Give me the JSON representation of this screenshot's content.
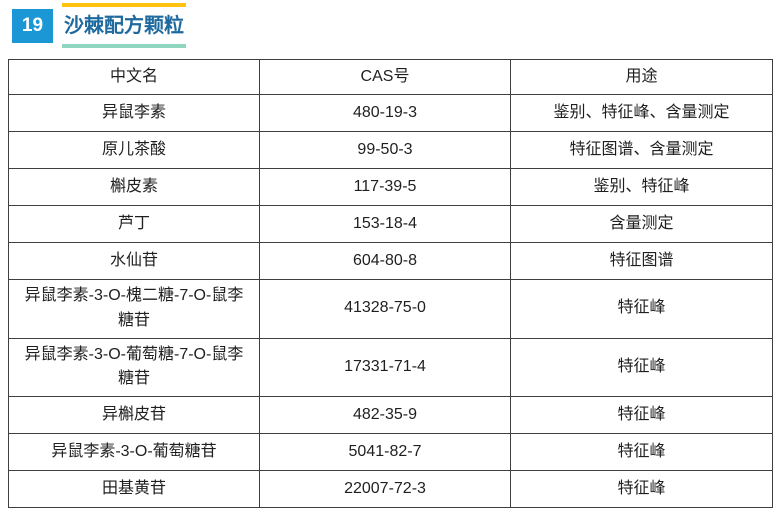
{
  "header": {
    "badge_number": "19",
    "title": "沙棘配方颗粒"
  },
  "colors": {
    "badge_bg": "#1B97D6",
    "title_text": "#1E6A9F",
    "bar_top": "#FFC20E",
    "bar_bottom": "#8FD5C0",
    "table_border": "#3F3F3F",
    "table_text": "#1F1F1F"
  },
  "table": {
    "columns": [
      "中文名",
      "CAS号",
      "用途"
    ],
    "rows": [
      {
        "name": "异鼠李素",
        "cas": "480-19-3",
        "usage": "鉴别、特征峰、含量测定"
      },
      {
        "name": "原儿茶酸",
        "cas": "99-50-3",
        "usage": "特征图谱、含量测定"
      },
      {
        "name": "槲皮素",
        "cas": "117-39-5",
        "usage": "鉴别、特征峰"
      },
      {
        "name": "芦丁",
        "cas": "153-18-4",
        "usage": "含量测定"
      },
      {
        "name": "水仙苷",
        "cas": "604-80-8",
        "usage": "特征图谱"
      },
      {
        "name": "异鼠李素-3-O-槐二糖-7-O-鼠李糖苷",
        "cas": "41328-75-0",
        "usage": "特征峰"
      },
      {
        "name": "异鼠李素-3-O-葡萄糖-7-O-鼠李糖苷",
        "cas": "17331-71-4",
        "usage": "特征峰"
      },
      {
        "name": "异槲皮苷",
        "cas": "482-35-9",
        "usage": "特征峰"
      },
      {
        "name": "异鼠李素-3-O-葡萄糖苷",
        "cas": "5041-82-7",
        "usage": "特征峰"
      },
      {
        "name": "田基黄苷",
        "cas": "22007-72-3",
        "usage": "特征峰"
      }
    ]
  }
}
